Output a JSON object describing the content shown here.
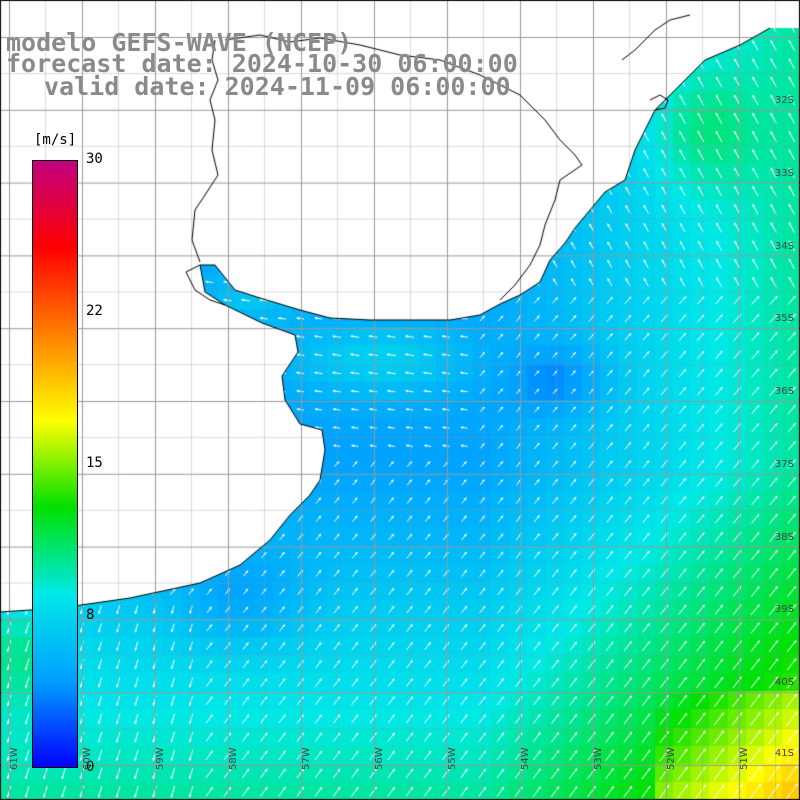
{
  "title": {
    "line1": "modelo GEFS-WAVE (NCEP)",
    "line2": "forecast date: 2024-10-30 06:00:00",
    "line3": "valid date: 2024-11-09 06:00:00"
  },
  "colorbar": {
    "unit": "[m/s]",
    "ticks": [
      "30",
      "22",
      "15",
      "8",
      "0"
    ],
    "tick_values": [
      30,
      22,
      15,
      8,
      0
    ],
    "min": 0,
    "max": 30,
    "color_stops": [
      "#0000ff",
      "#00a0ff",
      "#00e8e8",
      "#00e000",
      "#ffff00",
      "#ff8000",
      "#ff0000",
      "#c0007f"
    ]
  },
  "axes": {
    "lat_labels": [
      "32S",
      "33S",
      "34S",
      "35S",
      "36S",
      "37S",
      "38S",
      "39S",
      "40S",
      "41S"
    ],
    "lon_labels": [
      "61W",
      "60W",
      "59W",
      "58W",
      "57W",
      "56W",
      "55W",
      "54W",
      "53W",
      "52W",
      "51W"
    ]
  },
  "map": {
    "land_color": "#ffffff",
    "coast_color": "#000000",
    "grid_color": "#999999",
    "arrow_color": "#ffffff"
  }
}
